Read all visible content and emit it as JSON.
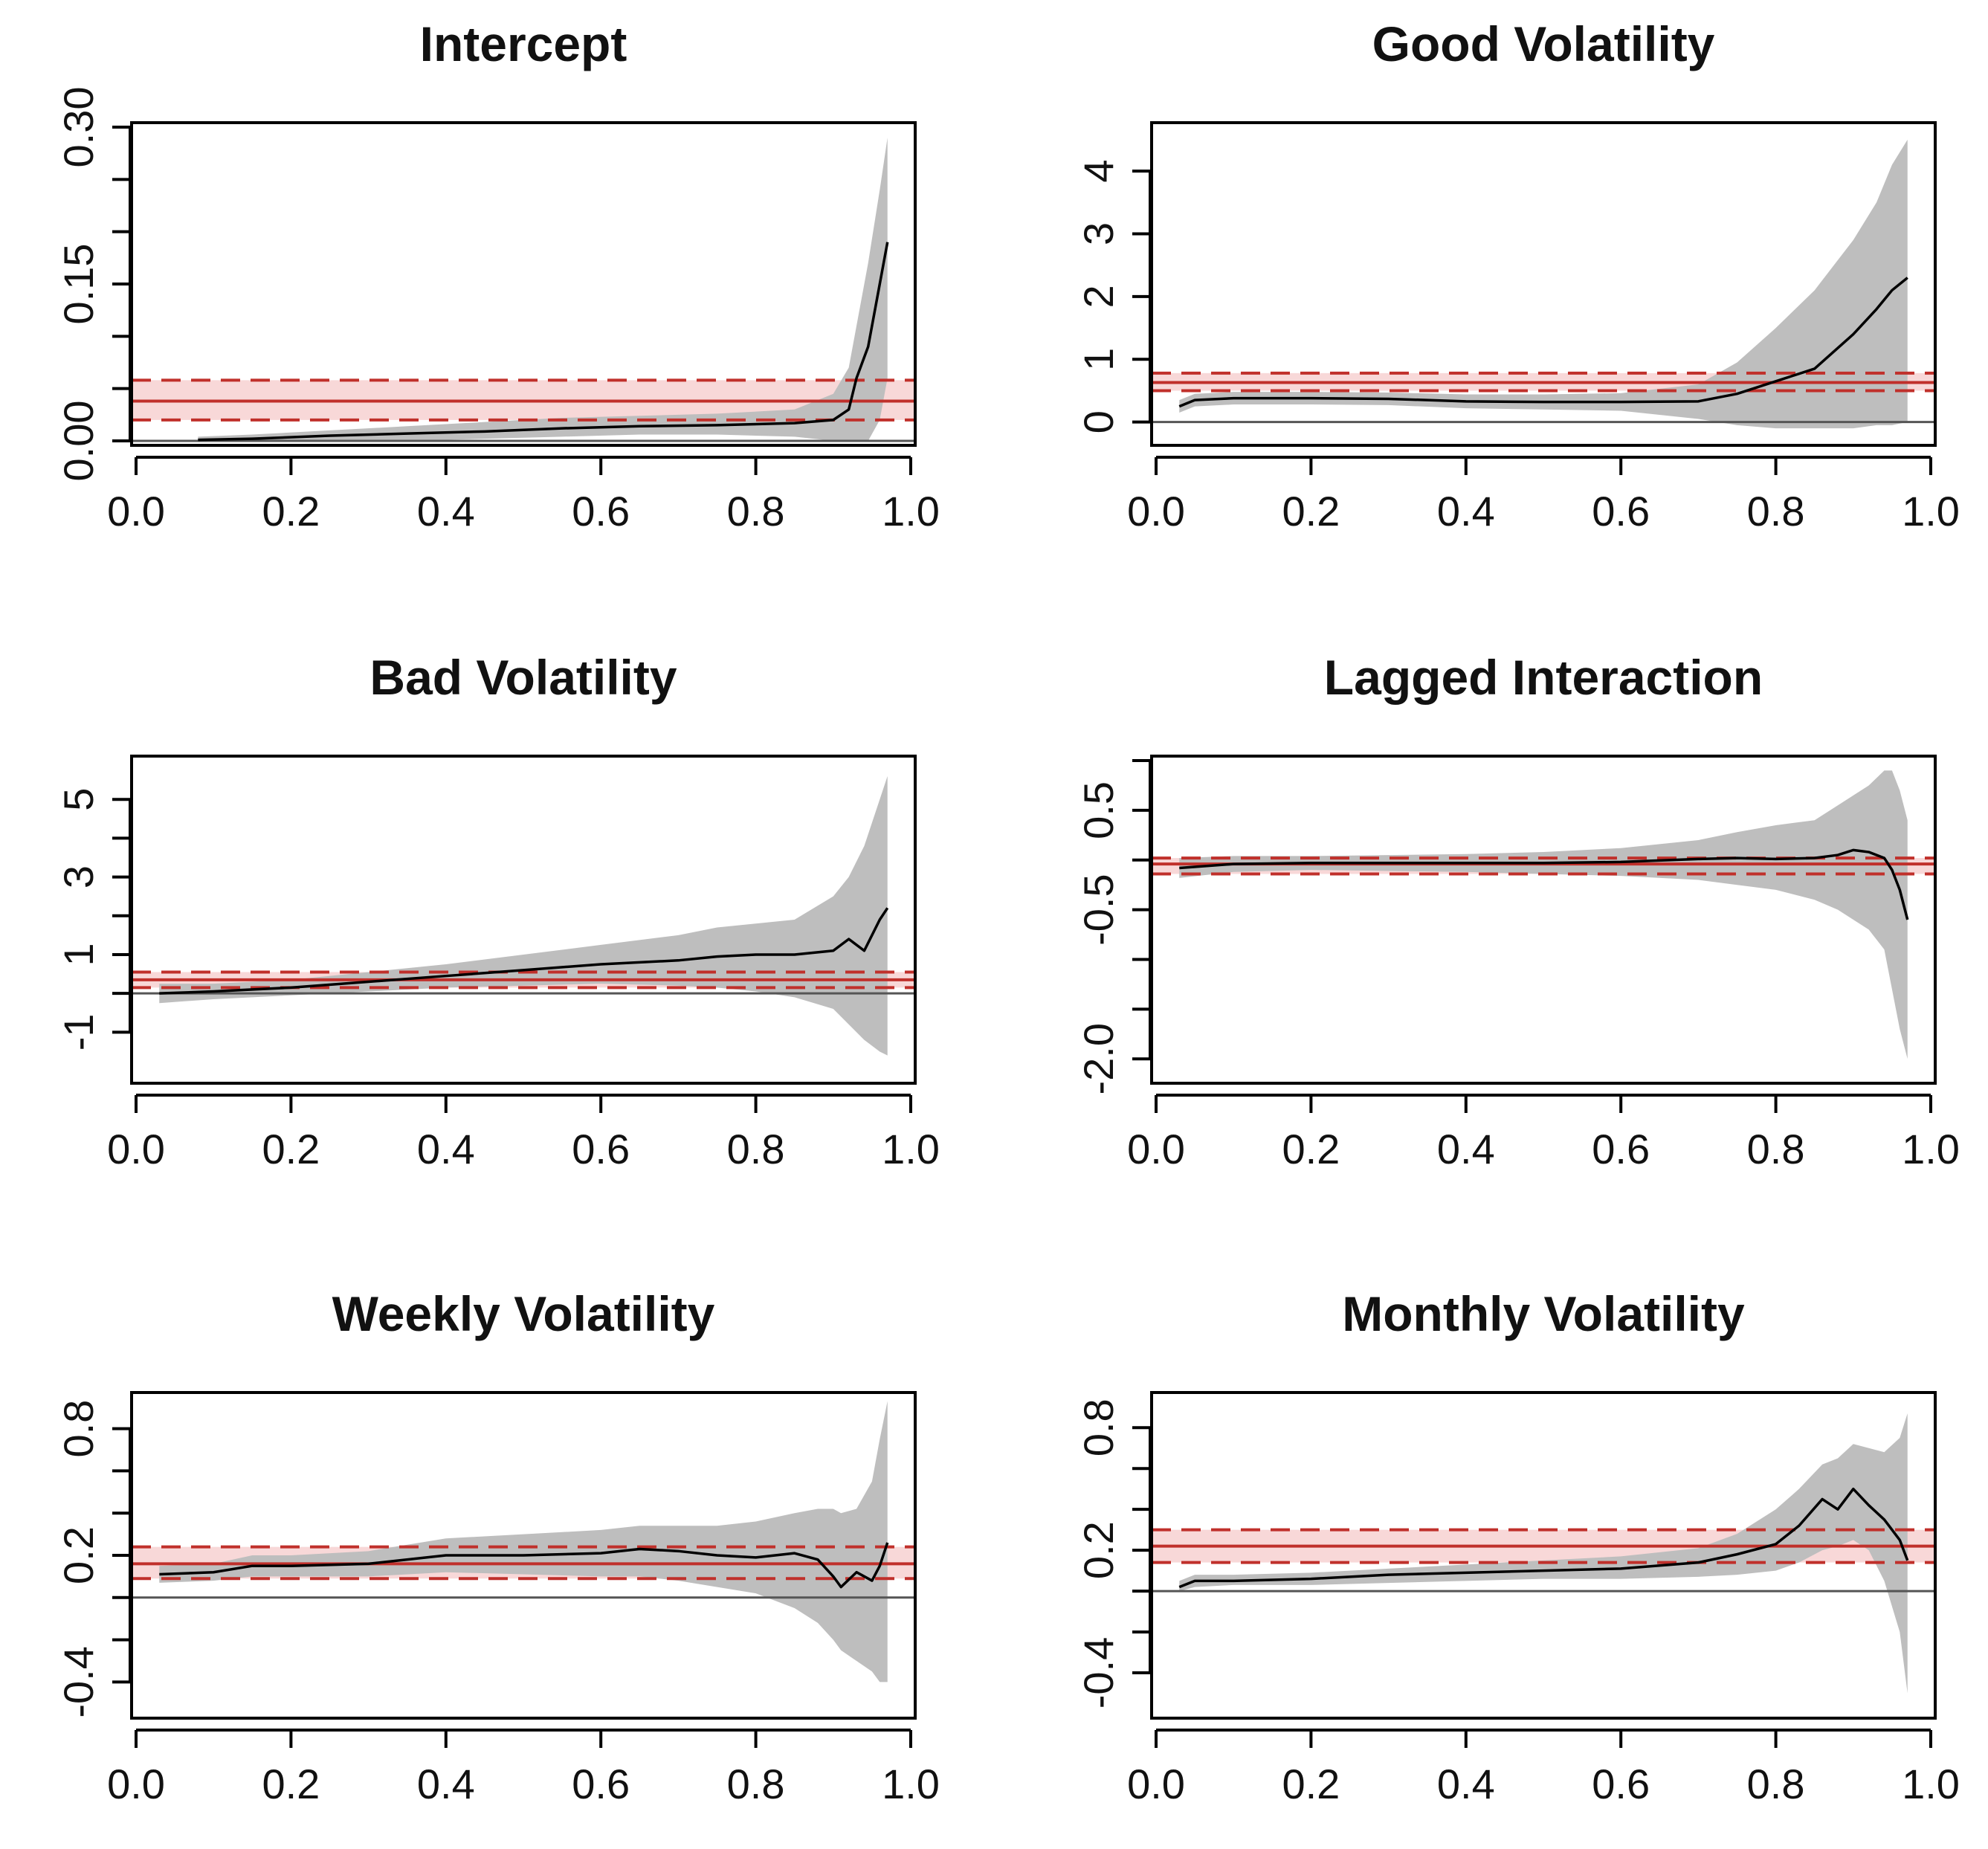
{
  "chart_data": [
    {
      "type": "line",
      "title": "Intercept",
      "xlabel": "",
      "ylabel": "",
      "xlim": [
        0.0,
        1.0
      ],
      "ylim": [
        0.0,
        0.3
      ],
      "x_ticks": [
        "0.0",
        "0.2",
        "0.4",
        "0.6",
        "0.8",
        "1.0"
      ],
      "y_ticks": [
        "0.00",
        "0.15",
        "0.30"
      ],
      "y_tick_values": [
        0.0,
        0.15,
        0.3
      ],
      "y_minor_ticks": [
        0.05,
        0.1,
        0.2,
        0.25
      ],
      "x": [
        0.08,
        0.15,
        0.25,
        0.35,
        0.45,
        0.55,
        0.65,
        0.75,
        0.85,
        0.9,
        0.92,
        0.93,
        0.945,
        0.96,
        0.97
      ],
      "estimate": [
        0.001,
        0.002,
        0.005,
        0.007,
        0.009,
        0.012,
        0.014,
        0.015,
        0.017,
        0.02,
        0.03,
        0.06,
        0.09,
        0.15,
        0.19
      ],
      "band_lower": [
        0.0,
        0.0,
        0.0,
        0.0,
        0.002,
        0.004,
        0.006,
        0.006,
        0.004,
        0.0,
        0.0,
        0.0,
        0.0,
        0.02,
        0.06
      ],
      "band_upper": [
        0.004,
        0.006,
        0.01,
        0.014,
        0.018,
        0.022,
        0.024,
        0.026,
        0.03,
        0.045,
        0.07,
        0.11,
        0.17,
        0.24,
        0.29
      ],
      "reference_solid": 0.038,
      "reference_dashed": [
        0.02,
        0.058
      ],
      "zero_line": 0.0
    },
    {
      "type": "line",
      "title": "Good Volatility",
      "xlabel": "",
      "ylabel": "",
      "xlim": [
        0.0,
        1.0
      ],
      "ylim": [
        -0.3,
        4.7
      ],
      "x_ticks": [
        "0.0",
        "0.2",
        "0.4",
        "0.6",
        "0.8",
        "1.0"
      ],
      "y_ticks": [
        "0",
        "1",
        "2",
        "3",
        "4"
      ],
      "y_tick_values": [
        0,
        1,
        2,
        3,
        4
      ],
      "y_minor_ticks": [],
      "x": [
        0.03,
        0.05,
        0.1,
        0.2,
        0.3,
        0.4,
        0.5,
        0.6,
        0.7,
        0.75,
        0.8,
        0.85,
        0.9,
        0.93,
        0.95,
        0.97
      ],
      "estimate": [
        0.25,
        0.35,
        0.38,
        0.38,
        0.37,
        0.33,
        0.32,
        0.32,
        0.33,
        0.45,
        0.65,
        0.85,
        1.4,
        1.8,
        2.1,
        2.3
      ],
      "band_lower": [
        0.15,
        0.25,
        0.28,
        0.28,
        0.27,
        0.22,
        0.2,
        0.18,
        0.05,
        -0.05,
        -0.1,
        -0.1,
        -0.1,
        -0.05,
        -0.05,
        0.0
      ],
      "band_upper": [
        0.35,
        0.45,
        0.48,
        0.48,
        0.47,
        0.44,
        0.44,
        0.46,
        0.6,
        0.95,
        1.5,
        2.1,
        2.9,
        3.5,
        4.1,
        4.5
      ],
      "reference_solid": 0.63,
      "reference_dashed": [
        0.5,
        0.78
      ],
      "zero_line": 0.0
    },
    {
      "type": "line",
      "title": "Bad Volatility",
      "xlabel": "",
      "ylabel": "",
      "xlim": [
        0.0,
        1.0
      ],
      "ylim": [
        -2.2,
        6.0
      ],
      "x_ticks": [
        "0.0",
        "0.2",
        "0.4",
        "0.6",
        "0.8",
        "1.0"
      ],
      "y_ticks": [
        "-1",
        "1",
        "3",
        "5"
      ],
      "y_tick_values": [
        -1,
        1,
        3,
        5
      ],
      "y_minor_ticks": [
        0,
        2,
        4
      ],
      "x": [
        0.03,
        0.1,
        0.2,
        0.3,
        0.4,
        0.5,
        0.6,
        0.7,
        0.75,
        0.8,
        0.85,
        0.9,
        0.92,
        0.94,
        0.96,
        0.97
      ],
      "estimate": [
        0.0,
        0.05,
        0.15,
        0.3,
        0.45,
        0.6,
        0.75,
        0.85,
        0.95,
        1.0,
        1.0,
        1.1,
        1.4,
        1.1,
        1.9,
        2.2
      ],
      "band_lower": [
        -0.25,
        -0.15,
        -0.05,
        0.05,
        0.15,
        0.2,
        0.25,
        0.2,
        0.15,
        0.05,
        -0.1,
        -0.4,
        -0.8,
        -1.2,
        -1.5,
        -1.6
      ],
      "band_upper": [
        0.25,
        0.25,
        0.35,
        0.55,
        0.75,
        1.0,
        1.25,
        1.5,
        1.7,
        1.8,
        1.9,
        2.5,
        3.0,
        3.8,
        5.0,
        5.6
      ],
      "reference_solid": 0.35,
      "reference_dashed": [
        0.15,
        0.55
      ],
      "zero_line": 0.0
    },
    {
      "type": "line",
      "title": "Lagged Interaction",
      "xlabel": "",
      "ylabel": "",
      "xlim": [
        0.0,
        1.0
      ],
      "ylim": [
        -2.2,
        1.0
      ],
      "x_ticks": [
        "0.0",
        "0.2",
        "0.4",
        "0.6",
        "0.8",
        "1.0"
      ],
      "y_ticks": [
        "-2.0",
        "-0.5",
        "0.5"
      ],
      "y_tick_values": [
        -2.0,
        -0.5,
        0.5
      ],
      "y_minor_ticks": [
        -1.5,
        -1.0,
        0.0,
        1.0
      ],
      "x": [
        0.03,
        0.1,
        0.2,
        0.3,
        0.4,
        0.5,
        0.6,
        0.7,
        0.75,
        0.8,
        0.85,
        0.88,
        0.9,
        0.92,
        0.94,
        0.95,
        0.96,
        0.97
      ],
      "estimate": [
        -0.08,
        -0.04,
        -0.03,
        -0.03,
        -0.03,
        -0.03,
        -0.02,
        0.01,
        0.02,
        0.01,
        0.02,
        0.05,
        0.1,
        0.08,
        0.02,
        -0.1,
        -0.3,
        -0.6
      ],
      "band_lower": [
        -0.18,
        -0.12,
        -0.1,
        -0.11,
        -0.12,
        -0.14,
        -0.16,
        -0.2,
        -0.25,
        -0.3,
        -0.4,
        -0.5,
        -0.6,
        -0.7,
        -0.9,
        -1.3,
        -1.7,
        -2.0
      ],
      "band_upper": [
        0.02,
        0.04,
        0.04,
        0.05,
        0.06,
        0.08,
        0.12,
        0.2,
        0.28,
        0.35,
        0.4,
        0.55,
        0.65,
        0.75,
        0.9,
        0.9,
        0.7,
        0.4
      ],
      "reference_solid": -0.04,
      "reference_dashed": [
        -0.14,
        0.02
      ],
      "zero_line": null
    },
    {
      "type": "line",
      "title": "Weekly Volatility",
      "xlabel": "",
      "ylabel": "",
      "xlim": [
        0.0,
        1.0
      ],
      "ylim": [
        -0.55,
        0.95
      ],
      "x_ticks": [
        "0.0",
        "0.2",
        "0.4",
        "0.6",
        "0.8",
        "1.0"
      ],
      "y_ticks": [
        "-0.4",
        "0.2",
        "0.8"
      ],
      "y_tick_values": [
        -0.4,
        0.2,
        0.8
      ],
      "y_minor_ticks": [
        -0.2,
        0.0,
        0.4,
        0.6
      ],
      "x": [
        0.03,
        0.1,
        0.15,
        0.2,
        0.3,
        0.4,
        0.5,
        0.6,
        0.65,
        0.7,
        0.75,
        0.8,
        0.85,
        0.88,
        0.9,
        0.91,
        0.93,
        0.95,
        0.96,
        0.97
      ],
      "estimate": [
        0.11,
        0.12,
        0.15,
        0.15,
        0.16,
        0.2,
        0.2,
        0.21,
        0.23,
        0.22,
        0.2,
        0.19,
        0.21,
        0.18,
        0.1,
        0.05,
        0.12,
        0.08,
        0.15,
        0.26
      ],
      "band_lower": [
        0.07,
        0.08,
        0.1,
        0.1,
        0.1,
        0.12,
        0.11,
        0.1,
        0.1,
        0.08,
        0.05,
        0.02,
        -0.05,
        -0.12,
        -0.2,
        -0.25,
        -0.3,
        -0.35,
        -0.4,
        -0.4
      ],
      "band_upper": [
        0.15,
        0.16,
        0.2,
        0.2,
        0.22,
        0.28,
        0.3,
        0.32,
        0.34,
        0.34,
        0.34,
        0.36,
        0.4,
        0.42,
        0.42,
        0.4,
        0.42,
        0.55,
        0.75,
        0.93
      ],
      "reference_solid": 0.16,
      "reference_dashed": [
        0.09,
        0.24
      ],
      "zero_line": 0.0
    },
    {
      "type": "line",
      "title": "Monthly Volatility",
      "xlabel": "",
      "ylabel": "",
      "xlim": [
        0.0,
        1.0
      ],
      "ylim": [
        -0.6,
        0.95
      ],
      "x_ticks": [
        "0.0",
        "0.2",
        "0.4",
        "0.6",
        "0.8",
        "1.0"
      ],
      "y_ticks": [
        "-0.4",
        "0.2",
        "0.8"
      ],
      "y_tick_values": [
        -0.4,
        0.2,
        0.8
      ],
      "y_minor_ticks": [
        -0.2,
        0.0,
        0.4,
        0.6
      ],
      "x": [
        0.03,
        0.05,
        0.1,
        0.2,
        0.3,
        0.4,
        0.5,
        0.6,
        0.7,
        0.75,
        0.8,
        0.83,
        0.86,
        0.88,
        0.9,
        0.92,
        0.94,
        0.96,
        0.97
      ],
      "estimate": [
        0.02,
        0.05,
        0.05,
        0.06,
        0.08,
        0.09,
        0.1,
        0.11,
        0.14,
        0.18,
        0.23,
        0.32,
        0.45,
        0.4,
        0.5,
        0.42,
        0.35,
        0.25,
        0.15
      ],
      "band_lower": [
        0.0,
        0.02,
        0.03,
        0.03,
        0.04,
        0.05,
        0.06,
        0.06,
        0.07,
        0.08,
        0.1,
        0.14,
        0.2,
        0.22,
        0.25,
        0.2,
        0.05,
        -0.2,
        -0.5
      ],
      "band_upper": [
        0.05,
        0.08,
        0.08,
        0.09,
        0.11,
        0.13,
        0.15,
        0.17,
        0.21,
        0.28,
        0.4,
        0.5,
        0.62,
        0.65,
        0.72,
        0.7,
        0.68,
        0.75,
        0.87
      ],
      "reference_solid": 0.22,
      "reference_dashed": [
        0.14,
        0.3
      ],
      "zero_line": 0.0
    }
  ],
  "colors": {
    "band": "#bebebe",
    "estimate": "#000000",
    "reference": "#c0302b",
    "reference_band": "#f2b8b8",
    "zero_line": "#555555",
    "axis": "#000000",
    "text": "#111111"
  }
}
